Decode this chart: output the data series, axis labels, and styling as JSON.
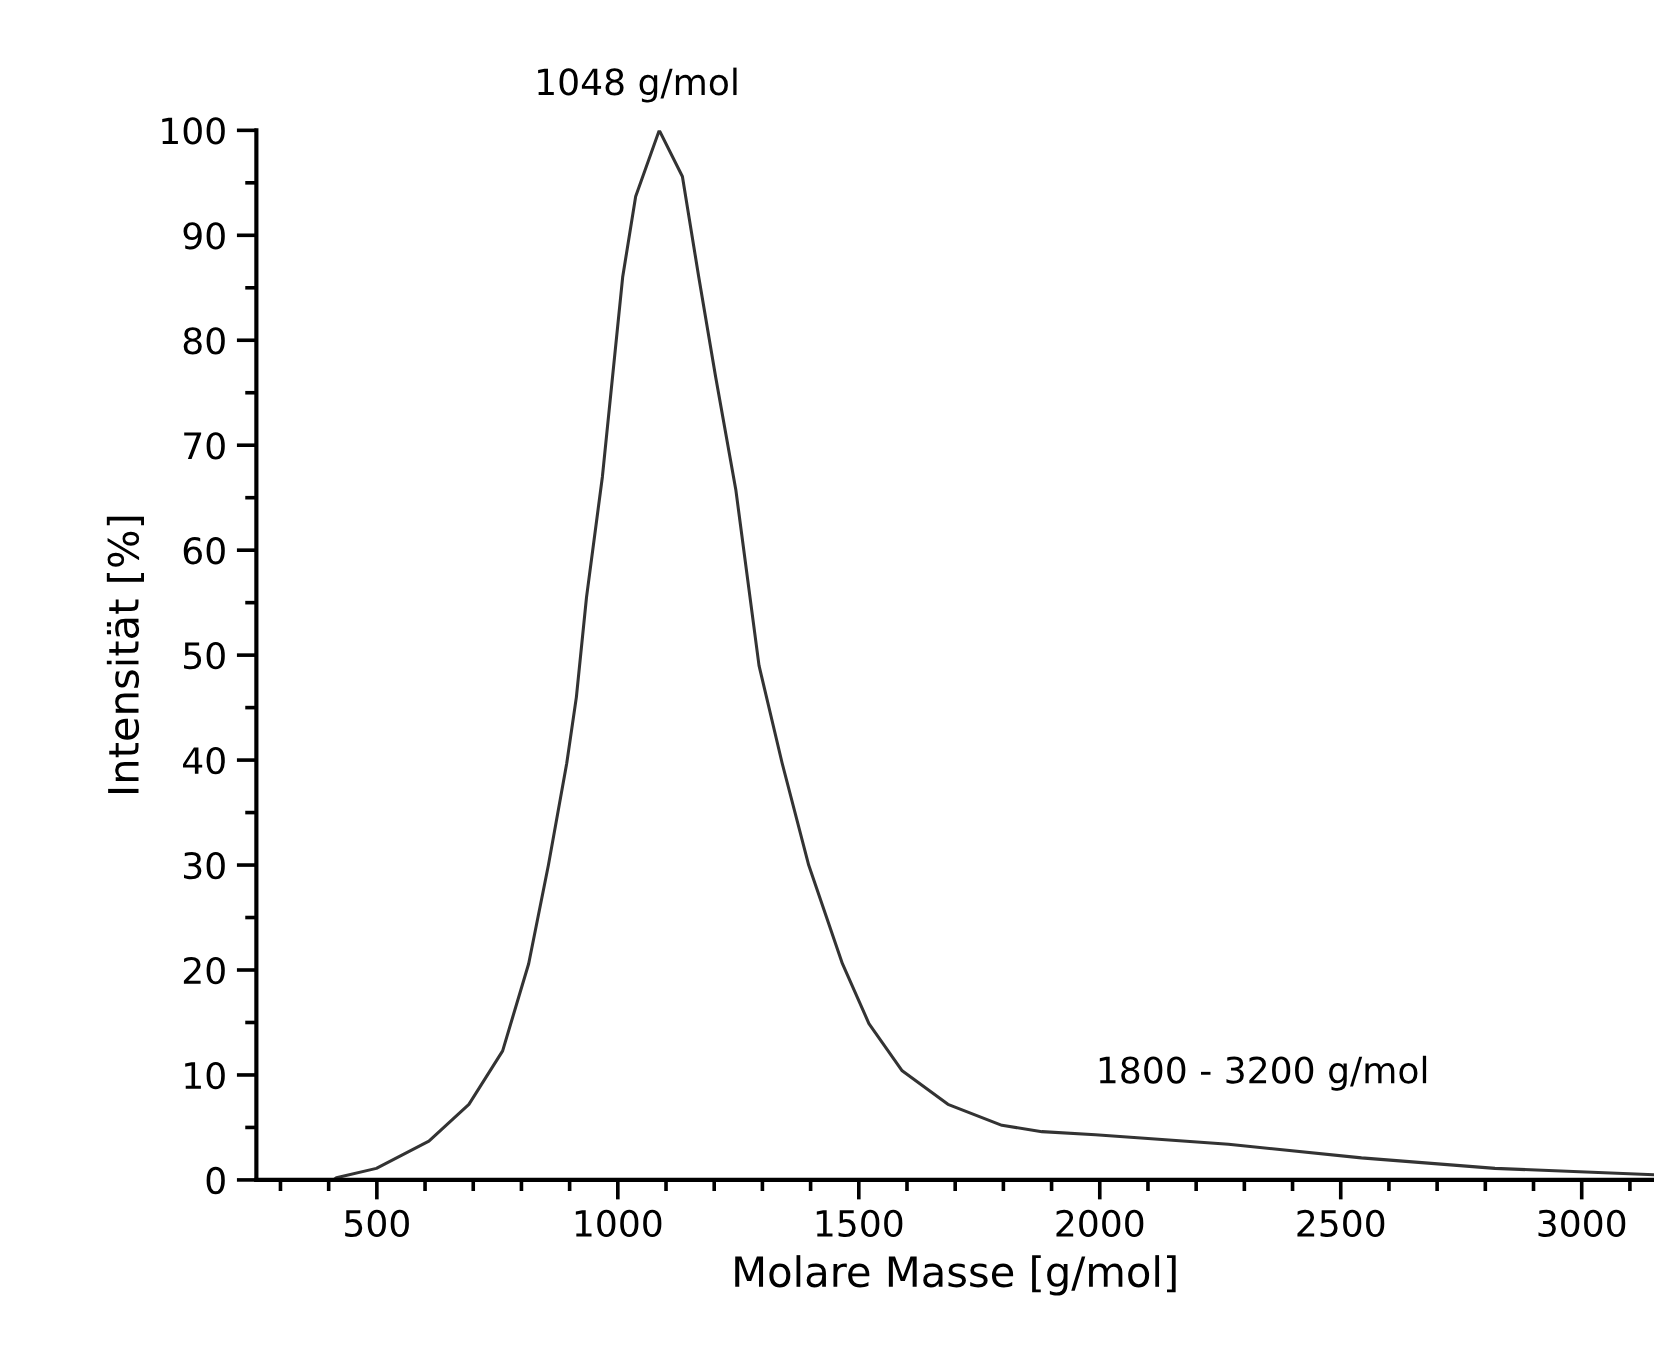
{
  "chart_data": {
    "type": "line",
    "xlabel": "Molare Masse [g/mol]",
    "ylabel": "Intensität [%]",
    "xlim": [
      250,
      3150
    ],
    "xticks": [
      500,
      1000,
      1500,
      2000,
      2500,
      3000
    ],
    "ylim": [
      0,
      100
    ],
    "yticks": [
      0,
      10,
      20,
      30,
      40,
      50,
      60,
      70,
      80,
      90,
      100
    ],
    "grid": false,
    "marker": "none",
    "line_style": "solid",
    "series": [
      {
        "color": "#333333",
        "x": [
          410,
          416,
          499,
          608,
          691,
          761,
          815,
          856,
          894,
          914,
          935,
          968,
          1010,
          1037,
          1086,
          1134,
          1168,
          1203,
          1245,
          1293,
          1341,
          1396,
          1466,
          1521,
          1590,
          1685,
          1797,
          1880,
          1991,
          2267,
          2543,
          2820,
          3150
        ],
        "values": [
          0,
          0.2,
          1.1,
          3.7,
          7.2,
          12.3,
          20.6,
          30,
          39.7,
          46,
          55.5,
          67,
          86,
          93.7,
          100,
          95.6,
          86,
          76.5,
          65.7,
          49,
          39.7,
          30,
          20.6,
          14.9,
          10.4,
          7.2,
          5.2,
          4.6,
          4.3,
          3.4,
          2.1,
          1.1,
          0.5
        ]
      }
    ],
    "annotations": [
      {
        "text": "1048 g/mol",
        "x": 1086,
        "y": 100
      },
      "1800 - 3200 g/mol"
    ]
  }
}
